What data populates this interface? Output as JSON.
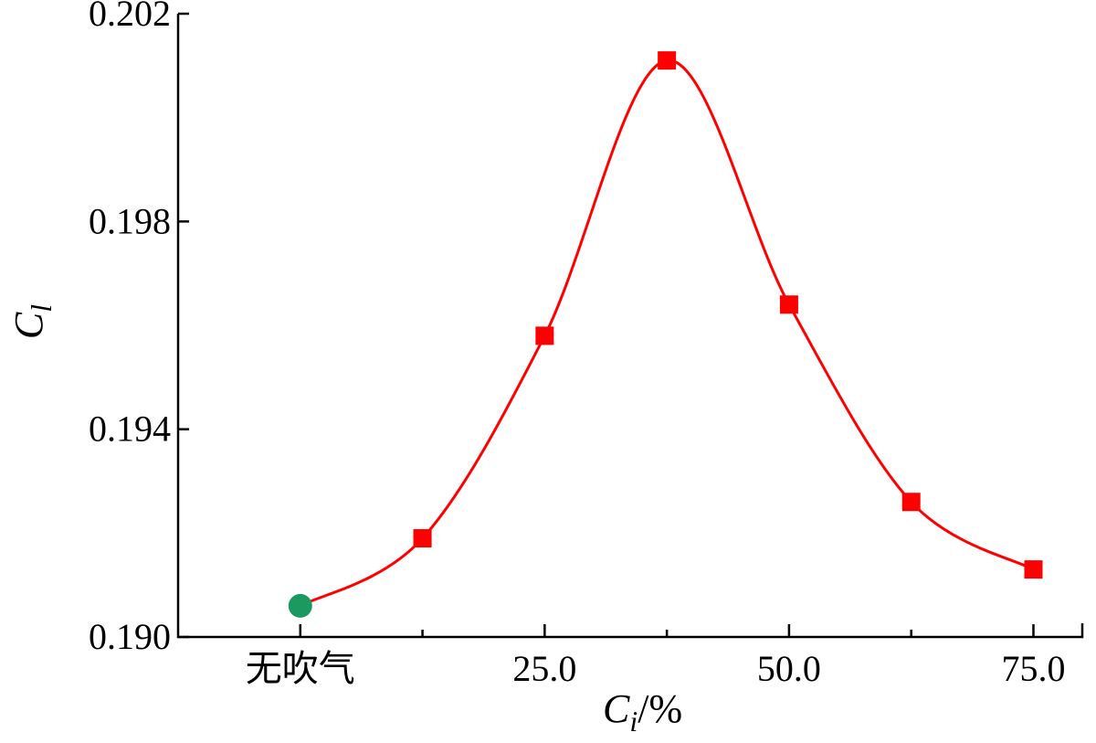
{
  "chart_data": {
    "type": "line",
    "xlabel": "C",
    "xlabel_sub": "i",
    "xlabel_unit": "/%",
    "ylabel": "C",
    "ylabel_sub": "l",
    "xlim": [
      -12.5,
      80
    ],
    "ylim": [
      0.19,
      0.202
    ],
    "x_ticks": [
      {
        "value": 0,
        "label": "无吹气"
      },
      {
        "value": 25,
        "label": "25.0"
      },
      {
        "value": 50,
        "label": "50.0"
      },
      {
        "value": 75,
        "label": "75.0"
      }
    ],
    "x_minor_ticks": [
      12.5,
      37.5,
      62.5
    ],
    "y_ticks": [
      {
        "value": 0.19,
        "label": "0.190"
      },
      {
        "value": 0.194,
        "label": "0.194"
      },
      {
        "value": 0.198,
        "label": "0.198"
      },
      {
        "value": 0.202,
        "label": "0.202"
      }
    ],
    "grid": false,
    "series": [
      {
        "marker": "circle",
        "color": "#1a9a5e",
        "points": [
          {
            "x": 0,
            "y": 0.1906
          }
        ]
      },
      {
        "marker": "square",
        "color": "#ff0000",
        "points": [
          {
            "x": 12.5,
            "y": 0.1919
          },
          {
            "x": 25,
            "y": 0.1958
          },
          {
            "x": 37.5,
            "y": 0.2011
          },
          {
            "x": 50,
            "y": 0.1964
          },
          {
            "x": 62.5,
            "y": 0.1926
          },
          {
            "x": 75,
            "y": 0.1913
          }
        ]
      }
    ],
    "curve": {
      "color": "#ff0000",
      "smooth": true,
      "points": [
        {
          "x": 0,
          "y": 0.1906
        },
        {
          "x": 12.5,
          "y": 0.1919
        },
        {
          "x": 25,
          "y": 0.1958
        },
        {
          "x": 37.5,
          "y": 0.2011
        },
        {
          "x": 50,
          "y": 0.1964
        },
        {
          "x": 62.5,
          "y": 0.1926
        },
        {
          "x": 75,
          "y": 0.1913
        }
      ]
    }
  }
}
